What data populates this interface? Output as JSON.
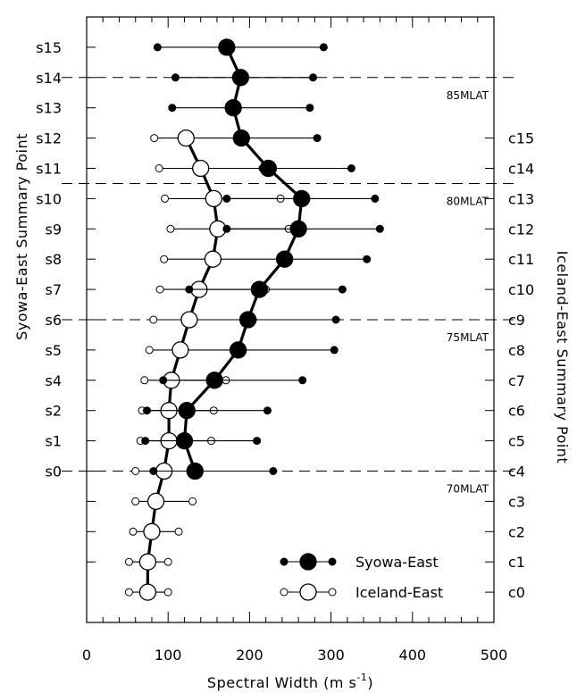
{
  "chart_data": {
    "type": "scatter",
    "xlabel": "Spectral Width (m s",
    "xlabel_sup": "-1",
    "xlabel_end": ")",
    "ylabel_left": "Syowa-East Summary Point",
    "ylabel_right": "Iceland-East Summary Point",
    "xlim": [
      0,
      500
    ],
    "x_ticks": [
      0,
      100,
      200,
      300,
      400,
      500
    ],
    "x_tick_labels": [
      "0",
      "100",
      "200",
      "300",
      "400",
      "500"
    ],
    "y_left_ticks": [
      {
        "y": 2,
        "label": "s0"
      },
      {
        "y": 3,
        "label": "s1"
      },
      {
        "y": 4,
        "label": "s2"
      },
      {
        "y": 5,
        "label": "s4"
      },
      {
        "y": 6,
        "label": "s5"
      },
      {
        "y": 7,
        "label": "s6"
      },
      {
        "y": 8,
        "label": "s7"
      },
      {
        "y": 9,
        "label": "s8"
      },
      {
        "y": 10,
        "label": "s9"
      },
      {
        "y": 11,
        "label": "s10"
      },
      {
        "y": 12,
        "label": "s11"
      },
      {
        "y": 13,
        "label": "s12"
      },
      {
        "y": 14,
        "label": "s13"
      },
      {
        "y": 15,
        "label": "s14"
      },
      {
        "y": 16,
        "label": "s15"
      }
    ],
    "y_left_minor": [
      -1,
      0,
      1
    ],
    "y_right_ticks": [
      {
        "y": -2,
        "label": "c0"
      },
      {
        "y": -1,
        "label": "c1"
      },
      {
        "y": 0,
        "label": "c2"
      },
      {
        "y": 1,
        "label": "c3"
      },
      {
        "y": 2,
        "label": "c4"
      },
      {
        "y": 3,
        "label": "c5"
      },
      {
        "y": 4,
        "label": "c6"
      },
      {
        "y": 5,
        "label": "c7"
      },
      {
        "y": 6,
        "label": "c8"
      },
      {
        "y": 7,
        "label": "c9"
      },
      {
        "y": 8,
        "label": "c10"
      },
      {
        "y": 9,
        "label": "c11"
      },
      {
        "y": 10,
        "label": "c12"
      },
      {
        "y": 11,
        "label": "c13"
      },
      {
        "y": 12,
        "label": "c14"
      },
      {
        "y": 13,
        "label": "c15"
      }
    ],
    "ylim": [
      -3,
      17
    ],
    "reference_lines": [
      {
        "y": 15,
        "label": "85MLAT"
      },
      {
        "y": 11.5,
        "label": "80MLAT"
      },
      {
        "y": 7,
        "label": "75MLAT"
      },
      {
        "y": 2,
        "label": "70MLAT"
      }
    ],
    "series": [
      {
        "name": "Syowa-East",
        "style": "filled",
        "points": [
          {
            "y": 16,
            "mean": 172,
            "low": 87,
            "high": 291
          },
          {
            "y": 15,
            "mean": 189,
            "low": 109,
            "high": 278
          },
          {
            "y": 14,
            "mean": 180,
            "low": 105,
            "high": 274
          },
          {
            "y": 13,
            "mean": 190,
            "low": 191,
            "high": 283
          },
          {
            "y": 12,
            "mean": 223,
            "low": 216,
            "high": 325
          },
          {
            "y": 11,
            "mean": 264,
            "low": 172,
            "high": 354
          },
          {
            "y": 10,
            "mean": 260,
            "low": 172,
            "high": 360
          },
          {
            "y": 9,
            "mean": 243,
            "low": 243,
            "high": 344
          },
          {
            "y": 8,
            "mean": 212,
            "low": 126,
            "high": 314
          },
          {
            "y": 7,
            "mean": 198,
            "low": 204,
            "high": 306
          },
          {
            "y": 6,
            "mean": 186,
            "low": 186,
            "high": 304
          },
          {
            "y": 5,
            "mean": 157,
            "low": 94,
            "high": 265
          },
          {
            "y": 4,
            "mean": 123,
            "low": 74,
            "high": 222
          },
          {
            "y": 3,
            "mean": 120,
            "low": 72,
            "high": 209
          },
          {
            "y": 2,
            "mean": 133,
            "low": 82,
            "high": 229
          }
        ]
      },
      {
        "name": "Iceland-East",
        "style": "open",
        "points": [
          {
            "y": 13,
            "mean": 122,
            "low": 83,
            "high": 190
          },
          {
            "y": 12,
            "mean": 140,
            "low": 89,
            "high": 216
          },
          {
            "y": 11,
            "mean": 156,
            "low": 96,
            "high": 238
          },
          {
            "y": 10,
            "mean": 161,
            "low": 103,
            "high": 248
          },
          {
            "y": 9,
            "mean": 155,
            "low": 95,
            "high": 243
          },
          {
            "y": 8,
            "mean": 138,
            "low": 90,
            "high": 220
          },
          {
            "y": 7,
            "mean": 126,
            "low": 82,
            "high": 204
          },
          {
            "y": 6,
            "mean": 115,
            "low": 77,
            "high": 186
          },
          {
            "y": 5,
            "mean": 104,
            "low": 71,
            "high": 171
          },
          {
            "y": 4,
            "mean": 101,
            "low": 68,
            "high": 156
          },
          {
            "y": 3,
            "mean": 101,
            "low": 66,
            "high": 153
          },
          {
            "y": 2,
            "mean": 95,
            "low": 60,
            "high": 136
          },
          {
            "y": 1,
            "mean": 85,
            "low": 60,
            "high": 130
          },
          {
            "y": 0,
            "mean": 80,
            "low": 57,
            "high": 113
          },
          {
            "y": -1,
            "mean": 75,
            "low": 52,
            "high": 100
          },
          {
            "y": -2,
            "mean": 75,
            "low": 52,
            "high": 100
          }
        ]
      }
    ],
    "legend": [
      {
        "name": "Syowa-East",
        "style": "filled"
      },
      {
        "name": "Iceland-East",
        "style": "open"
      }
    ],
    "legend_position": "bottom-right"
  }
}
